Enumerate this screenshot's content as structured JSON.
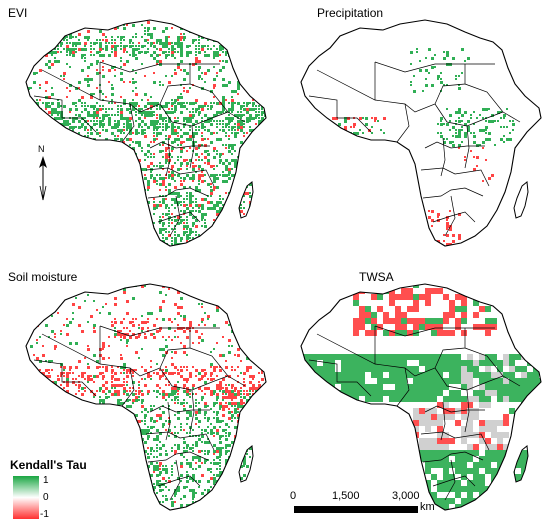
{
  "panels": [
    {
      "title": "EVI",
      "pattern": "evi"
    },
    {
      "title": "Precipitation",
      "pattern": "precip"
    },
    {
      "title": "Soil moisture",
      "pattern": "soil"
    },
    {
      "title": "TWSA",
      "pattern": "twsa"
    }
  ],
  "legend": {
    "title": "Kendall's Tau",
    "max_label": "1",
    "mid_label": "0",
    "min_label": "-1",
    "colors": {
      "positive": "#1aa642",
      "neutral": "#ffffff",
      "negative": "#ff3030"
    }
  },
  "north_arrow": {
    "label": "N"
  },
  "scale_bar": {
    "labels": [
      "0",
      "1,500",
      "3,000"
    ],
    "unit": "km"
  }
}
